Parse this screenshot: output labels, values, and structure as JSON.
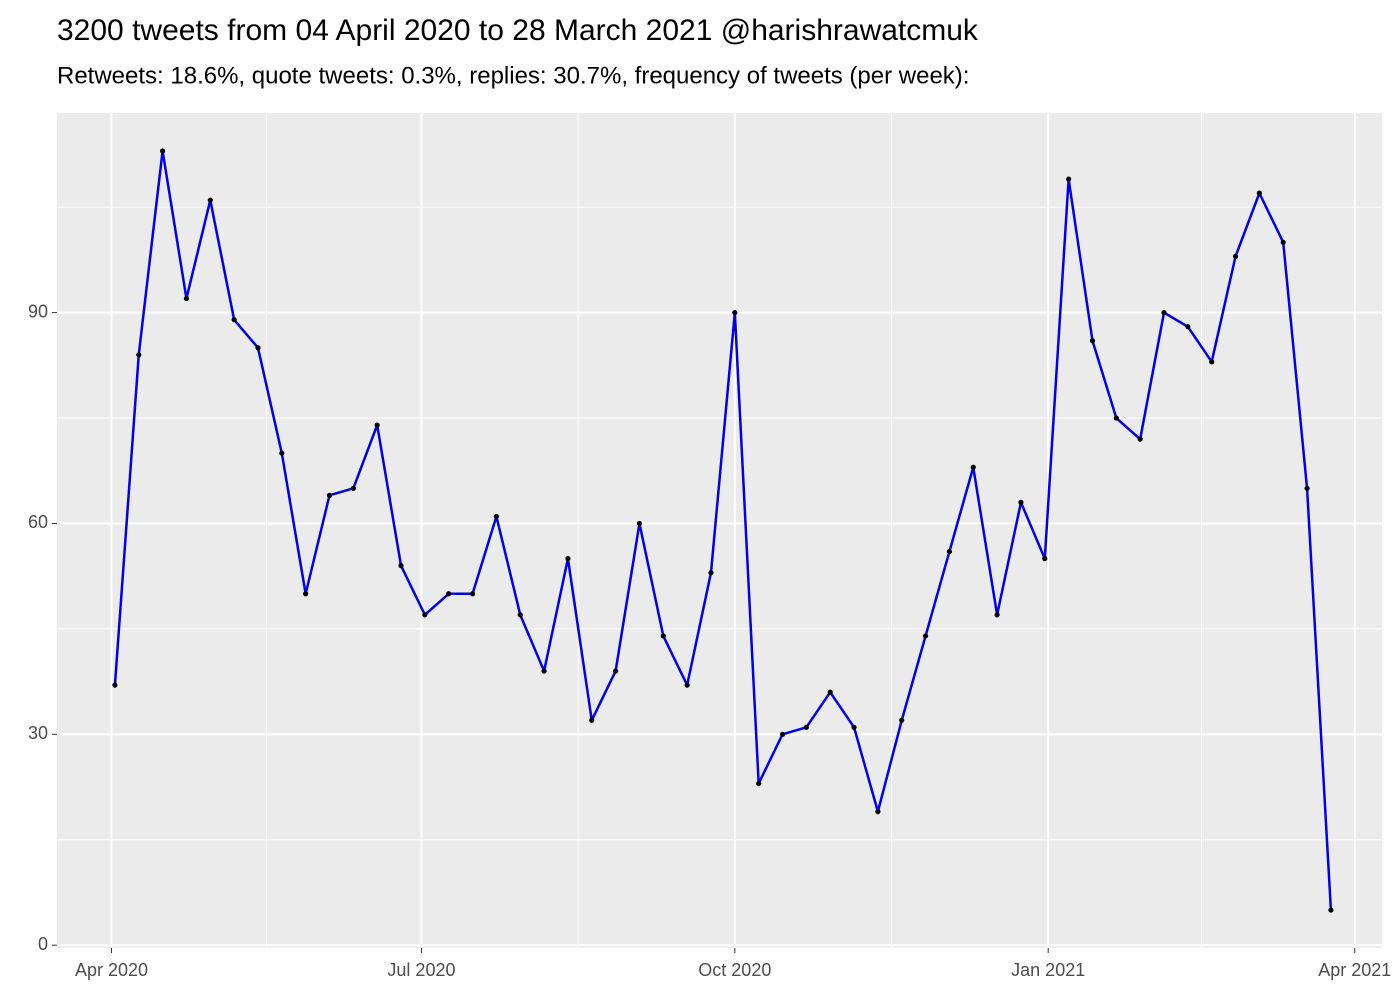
{
  "chart_data": {
    "type": "line",
    "title": "3200 tweets from 04 April 2020 to 28 March 2021 @harishrawatcmuk",
    "subtitle": "Retweets: 18.6%, quote tweets: 0.3%, replies: 30.7%, frequency of tweets (per week):",
    "x": [
      "2020-04-02",
      "2020-04-09",
      "2020-04-16",
      "2020-04-23",
      "2020-04-30",
      "2020-05-07",
      "2020-05-14",
      "2020-05-21",
      "2020-05-28",
      "2020-06-04",
      "2020-06-11",
      "2020-06-18",
      "2020-06-25",
      "2020-07-02",
      "2020-07-09",
      "2020-07-16",
      "2020-07-23",
      "2020-07-30",
      "2020-08-06",
      "2020-08-13",
      "2020-08-20",
      "2020-08-27",
      "2020-09-03",
      "2020-09-10",
      "2020-09-17",
      "2020-09-24",
      "2020-10-01",
      "2020-10-08",
      "2020-10-15",
      "2020-10-22",
      "2020-10-29",
      "2020-11-05",
      "2020-11-12",
      "2020-11-19",
      "2020-11-26",
      "2020-12-03",
      "2020-12-10",
      "2020-12-17",
      "2020-12-24",
      "2020-12-31",
      "2021-01-07",
      "2021-01-14",
      "2021-01-21",
      "2021-01-28",
      "2021-02-04",
      "2021-02-11",
      "2021-02-18",
      "2021-02-25",
      "2021-03-04",
      "2021-03-11",
      "2021-03-18",
      "2021-03-25"
    ],
    "values": [
      37,
      84,
      113,
      92,
      106,
      89,
      85,
      70,
      50,
      64,
      65,
      74,
      54,
      47,
      50,
      50,
      61,
      47,
      39,
      55,
      32,
      39,
      60,
      44,
      37,
      53,
      90,
      23,
      30,
      31,
      36,
      31,
      19,
      32,
      44,
      56,
      68,
      47,
      63,
      55,
      109,
      86,
      75,
      72,
      90,
      88,
      83,
      98,
      107,
      100,
      65,
      5
    ],
    "color": "#0000ee",
    "point_color": "#000000",
    "xlim": [
      "2020-03-16",
      "2021-04-09"
    ],
    "xticks": [
      {
        "value": "2020-04-01",
        "label": "Apr 2020"
      },
      {
        "value": "2020-07-01",
        "label": "Jul 2020"
      },
      {
        "value": "2020-10-01",
        "label": "Oct 2020"
      },
      {
        "value": "2021-01-01",
        "label": "Jan 2021"
      },
      {
        "value": "2021-04-01",
        "label": "Apr 2021"
      }
    ],
    "ylim": [
      -0.4,
      118.4
    ],
    "yticks": [
      0,
      30,
      60,
      90
    ],
    "grid": true
  }
}
